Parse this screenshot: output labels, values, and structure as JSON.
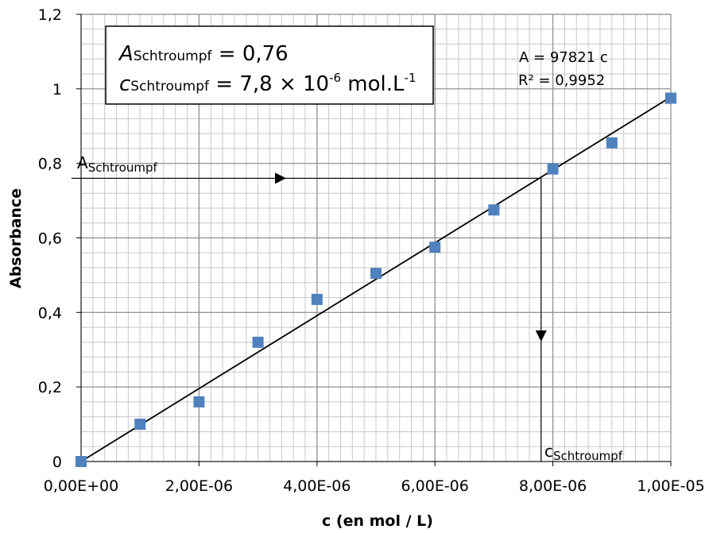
{
  "chart_data": {
    "type": "scatter",
    "xlabel": "c (en mol / L)",
    "ylabel": "Absorbance",
    "xlim": [
      0,
      1e-05
    ],
    "ylim": [
      0,
      1.2
    ],
    "x_ticks": [
      "0,00E+00",
      "2,00E-06",
      "4,00E-06",
      "6,00E-06",
      "8,00E-06",
      "1,00E-05"
    ],
    "y_ticks": [
      "0",
      "0,2",
      "0,4",
      "0,6",
      "0,8",
      "1",
      "1,2"
    ],
    "grid": true,
    "series": [
      {
        "marker": "square",
        "color": "#4f81bd",
        "x": [
          0,
          1e-06,
          2e-06,
          3e-06,
          4e-06,
          5e-06,
          6e-06,
          7e-06,
          8e-06,
          9e-06,
          1e-05
        ],
        "y": [
          0,
          0.1,
          0.16,
          0.32,
          0.435,
          0.505,
          0.575,
          0.675,
          0.785,
          0.855,
          0.975
        ]
      }
    ],
    "trendline": {
      "slope": 97821,
      "equation": "A = 97821 c",
      "r2": "R² = 0,9952"
    },
    "annotation": {
      "a_value": 0.76,
      "c_value": 7.8e-06,
      "box_line1": {
        "var": "A",
        "sub": "Schtroumpf",
        "rest": " = 0,76"
      },
      "box_line2": {
        "var": "c",
        "sub": "Schtroumpf",
        "pre": " = 7,8 × 10",
        "sup1": "-6",
        "mid": " mol.L",
        "sup2": "-1"
      },
      "a_label": {
        "main": "A",
        "sub": "Schtroumpf"
      },
      "c_label": {
        "main": "c",
        "sub": "Schtroumpf"
      }
    }
  }
}
